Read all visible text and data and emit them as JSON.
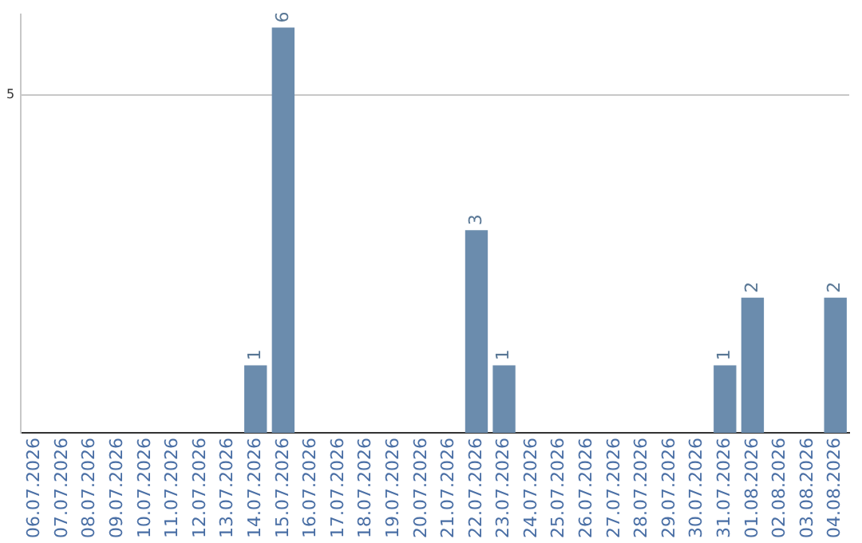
{
  "chart_data": {
    "type": "bar",
    "categories": [
      "06.07.2026",
      "07.07.2026",
      "08.07.2026",
      "09.07.2026",
      "10.07.2026",
      "11.07.2026",
      "12.07.2026",
      "13.07.2026",
      "14.07.2026",
      "15.07.2026",
      "16.07.2026",
      "17.07.2026",
      "18.07.2026",
      "19.07.2026",
      "20.07.2026",
      "21.07.2026",
      "22.07.2026",
      "23.07.2026",
      "24.07.2026",
      "25.07.2026",
      "26.07.2026",
      "27.07.2026",
      "28.07.2026",
      "29.07.2026",
      "30.07.2026",
      "31.07.2026",
      "01.08.2026",
      "02.08.2026",
      "03.08.2026",
      "04.08.2026"
    ],
    "values": [
      0,
      0,
      0,
      0,
      0,
      0,
      0,
      0,
      1,
      6,
      0,
      0,
      0,
      0,
      0,
      0,
      3,
      1,
      0,
      0,
      0,
      0,
      0,
      0,
      0,
      1,
      2,
      0,
      0,
      2
    ],
    "value_labels": [
      null,
      null,
      null,
      null,
      null,
      null,
      null,
      null,
      "1",
      "6",
      null,
      null,
      null,
      null,
      null,
      null,
      "3",
      "1",
      null,
      null,
      null,
      null,
      null,
      null,
      null,
      "1",
      "2",
      null,
      null,
      "2"
    ],
    "color": "#6b8cad",
    "ylim": [
      0,
      6.2
    ],
    "yticks": [
      5
    ],
    "grid": "y",
    "legend": false
  }
}
